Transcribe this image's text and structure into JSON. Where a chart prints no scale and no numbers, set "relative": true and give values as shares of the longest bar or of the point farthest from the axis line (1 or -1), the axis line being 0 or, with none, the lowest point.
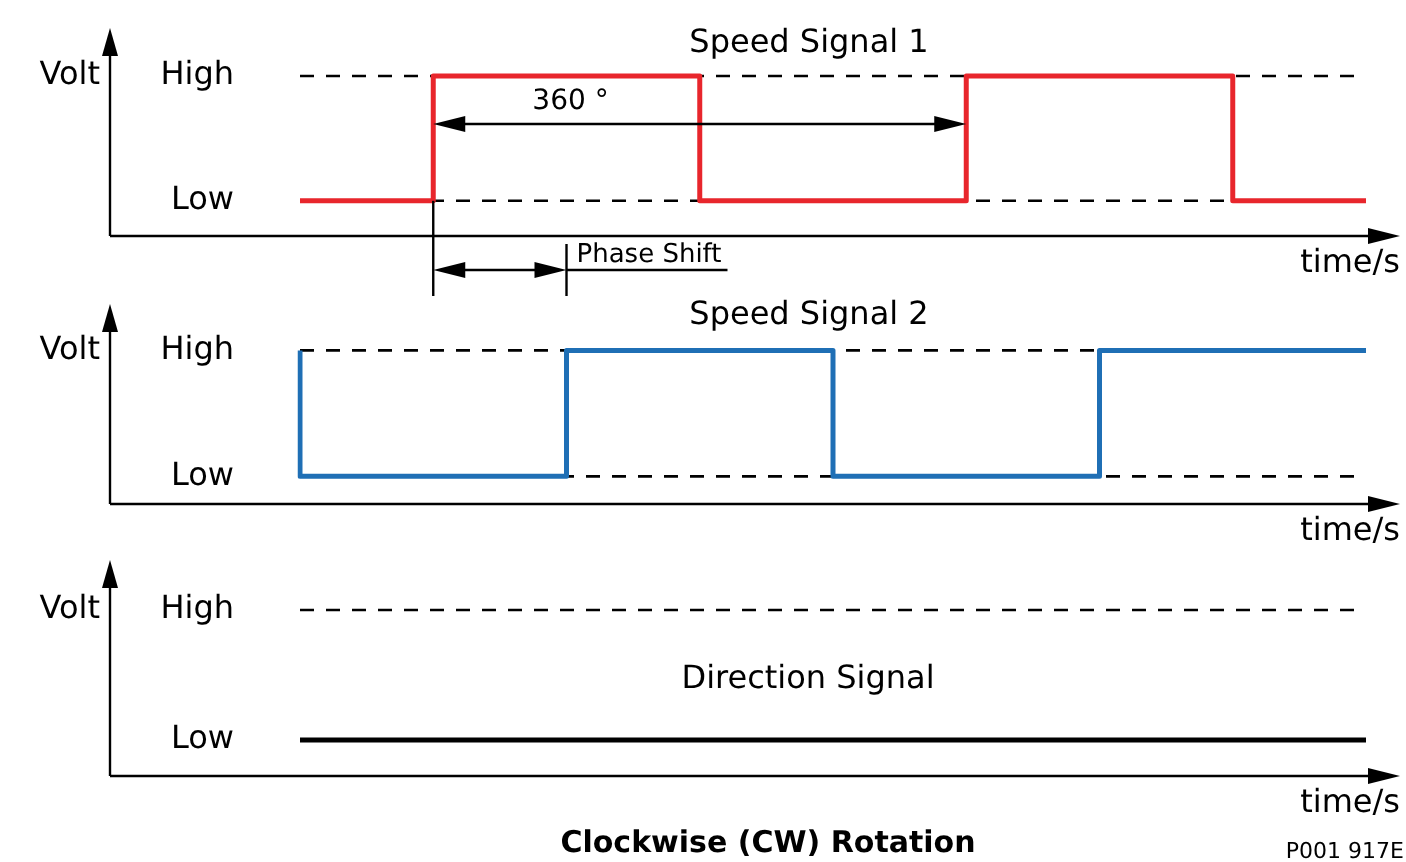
{
  "chart_data": [
    {
      "type": "step",
      "title": "Speed Signal 1",
      "xlabel": "time/s",
      "ylabel": "Volt",
      "categories": [
        null,
        null,
        null,
        null,
        null,
        null,
        null,
        null,
        null
      ],
      "relative": true,
      "tick_labels": false,
      "series": [
        {
          "color": "#e8262c",
          "values": [
            0.22,
            0.22,
            1,
            1,
            0.22,
            0.22,
            1,
            1,
            0.22
          ]
        }
      ],
      "ref_lines": [
        {
          "axis": "y",
          "value": 1,
          "label": "High",
          "line_style": "dashed",
          "color": "#000000"
        },
        {
          "axis": "y",
          "value": 0.22,
          "label": "Low",
          "line_style": "dashed",
          "color": "#000000"
        }
      ],
      "annotations": [
        "360 °",
        "Phase Shift"
      ]
    },
    {
      "type": "step",
      "title": "Speed Signal 2",
      "xlabel": "time/s",
      "ylabel": "Volt",
      "categories": [
        null,
        null,
        null,
        null,
        null,
        null,
        null,
        null,
        null
      ],
      "relative": true,
      "tick_labels": false,
      "series": [
        {
          "color": "#1f6fb5",
          "values": [
            1,
            0.18,
            0.18,
            1,
            1,
            0.18,
            0.18,
            1,
            1
          ]
        }
      ],
      "ref_lines": [
        {
          "axis": "y",
          "value": 1,
          "label": "High",
          "line_style": "dashed",
          "color": "#000000"
        },
        {
          "axis": "y",
          "value": 0.18,
          "label": "Low",
          "line_style": "dashed",
          "color": "#000000"
        }
      ]
    },
    {
      "type": "other",
      "title": "Direction Signal",
      "xlabel": "time/s",
      "ylabel": "Volt",
      "annotations": [
        "High",
        "Low",
        "Clockwise (CW) Rotation",
        "P001 917E"
      ]
    }
  ]
}
